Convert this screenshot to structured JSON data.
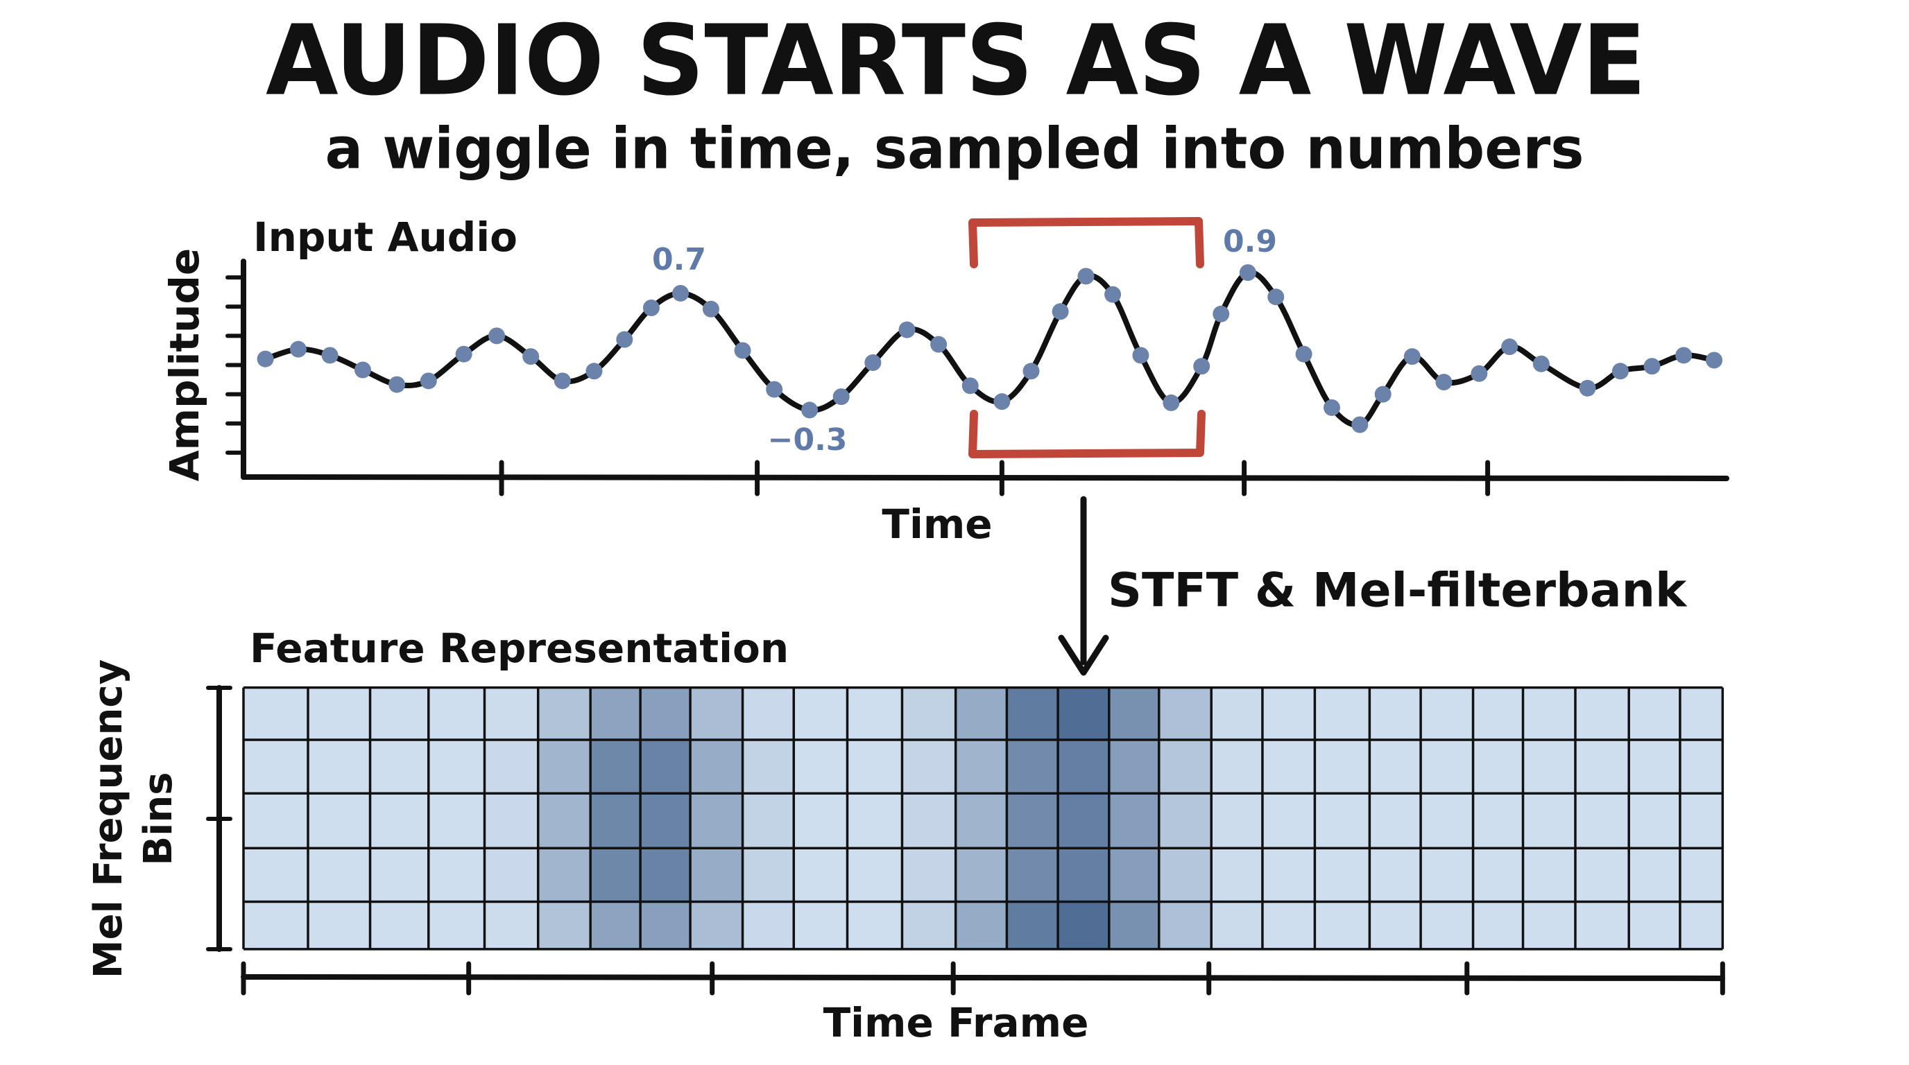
{
  "title": "AUDIO STARTS AS A WAVE",
  "subtitle": "a wiggle in time, sampled into numbers",
  "top_panel": {
    "label": "Input Audio",
    "y_label": "Amplitude",
    "x_label": "Time",
    "annotations": [
      "0.7",
      "−0.3",
      "0.9"
    ]
  },
  "arrow_label": "STFT & Mel-filterbank",
  "bottom_panel": {
    "label": "Feature Representation",
    "y_label": [
      "Mel Frequency",
      "Bins"
    ],
    "x_label": "Time Frame"
  }
}
